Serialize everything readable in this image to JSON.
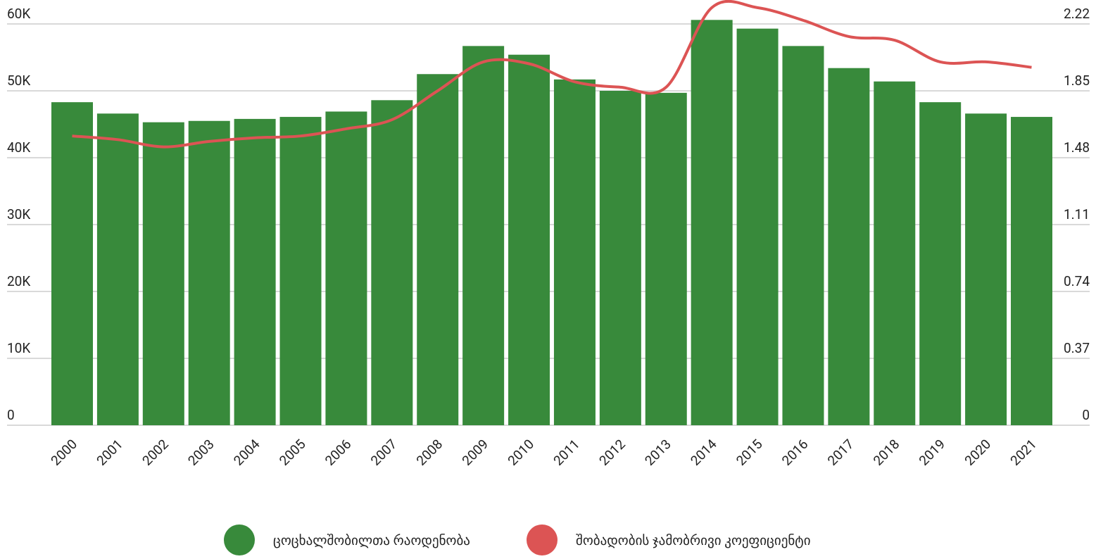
{
  "chart_data": {
    "type": "bar_line",
    "categories": [
      "2000",
      "2001",
      "2002",
      "2003",
      "2004",
      "2005",
      "2006",
      "2007",
      "2008",
      "2009",
      "2010",
      "2011",
      "2012",
      "2013",
      "2014",
      "2015",
      "2016",
      "2017",
      "2018",
      "2019",
      "2020",
      "2021"
    ],
    "series": [
      {
        "name": "ცოცხალშობილთა რაოდენობა",
        "color": "#388a3b",
        "type": "bar",
        "values": [
          48300,
          46600,
          45300,
          45500,
          45800,
          46100,
          46900,
          48600,
          52500,
          56700,
          55400,
          51700,
          50000,
          49700,
          60600,
          59300,
          56700,
          53400,
          51400,
          48300,
          46600,
          46100
        ]
      },
      {
        "name": "შობადობის ჯამობრივი კოეფიციენტი",
        "color": "#dc5454",
        "type": "line",
        "axis": "y2",
        "values": [
          1.6,
          1.58,
          1.54,
          1.57,
          1.59,
          1.6,
          1.64,
          1.69,
          1.85,
          2.01,
          2.0,
          1.9,
          1.87,
          1.87,
          2.31,
          2.31,
          2.24,
          2.15,
          2.13,
          2.01,
          2.01,
          1.98
        ]
      }
    ],
    "ylim": [
      0,
      60000
    ],
    "yticks": [
      0,
      {
        "value": 10000,
        "label": "10K"
      },
      {
        "value": 20000,
        "label": "20K"
      },
      {
        "value": 30000,
        "label": "30K"
      },
      {
        "value": 40000,
        "label": "40K"
      },
      {
        "value": 50000,
        "label": "50K"
      },
      {
        "value": 60000,
        "label": "60K"
      }
    ],
    "y2lim": [
      0,
      2.22
    ],
    "y2ticks": [
      0,
      0.37,
      0.74,
      1.11,
      1.48,
      1.85,
      2.22
    ],
    "grid": true,
    "legend": "bottom"
  }
}
